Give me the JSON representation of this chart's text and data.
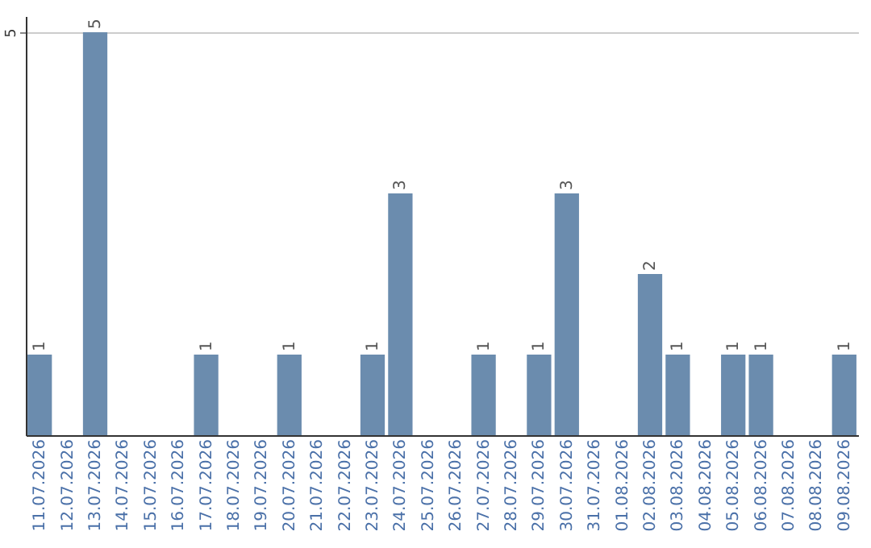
{
  "chart_data": {
    "type": "bar",
    "categories": [
      "11.07.2026",
      "12.07.2026",
      "13.07.2026",
      "14.07.2026",
      "15.07.2026",
      "16.07.2026",
      "17.07.2026",
      "18.07.2026",
      "19.07.2026",
      "20.07.2026",
      "21.07.2026",
      "22.07.2026",
      "23.07.2026",
      "24.07.2026",
      "25.07.2026",
      "26.07.2026",
      "27.07.2026",
      "28.07.2026",
      "29.07.2026",
      "30.07.2026",
      "31.07.2026",
      "01.08.2026",
      "02.08.2026",
      "03.08.2026",
      "04.08.2026",
      "05.08.2026",
      "06.08.2026",
      "07.08.2026",
      "08.08.2026",
      "09.08.2026"
    ],
    "values": [
      1,
      null,
      5,
      null,
      null,
      null,
      1,
      null,
      null,
      1,
      null,
      null,
      1,
      3,
      null,
      null,
      1,
      null,
      1,
      3,
      null,
      null,
      2,
      1,
      null,
      1,
      1,
      null,
      null,
      1
    ],
    "color": "#6b8cae",
    "ylim": [
      0,
      5.2
    ],
    "yticks": [
      5
    ],
    "grid": "y",
    "data_labels": true
  }
}
